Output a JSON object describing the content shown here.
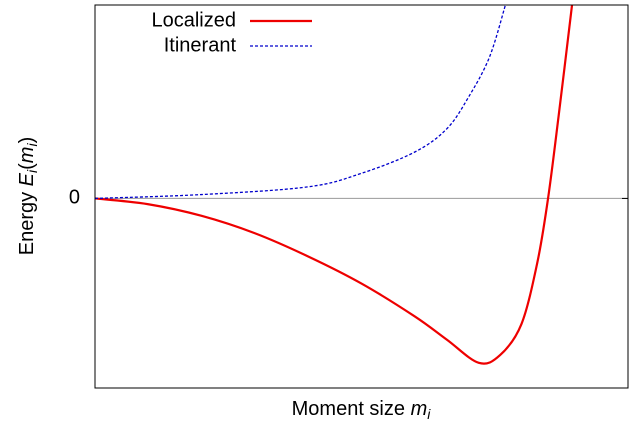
{
  "chart_data": {
    "type": "line",
    "xlabel": [
      "Moment size ",
      "m",
      "i"
    ],
    "ylabel": [
      "Energy ",
      "E",
      "i",
      "(",
      "m",
      "i",
      ")"
    ],
    "xlim": [
      0,
      1
    ],
    "xticks": [],
    "ylim": [
      -0.98,
      1.0
    ],
    "yticks": [
      0
    ],
    "grid": true,
    "legend": "upper left",
    "series": [
      {
        "name": "Localized",
        "color": "#ee0000",
        "dash": "solid",
        "x": [
          0,
          0.1,
          0.2,
          0.3,
          0.4,
          0.5,
          0.6,
          0.66,
          0.72,
          0.76,
          0.8,
          0.83,
          0.85,
          0.87,
          0.895
        ],
        "values": [
          0,
          -0.03,
          -0.09,
          -0.18,
          -0.3,
          -0.44,
          -0.61,
          -0.73,
          -0.85,
          -0.81,
          -0.65,
          -0.33,
          0,
          0.43,
          1.0
        ]
      },
      {
        "name": "Itinerant",
        "color": "#0000cc",
        "dash": "dashed",
        "x": [
          0,
          0.2,
          0.4,
          0.5,
          0.6,
          0.66,
          0.7,
          0.74,
          0.77
        ],
        "values": [
          0,
          0.02,
          0.06,
          0.13,
          0.24,
          0.36,
          0.52,
          0.73,
          1.0
        ]
      }
    ]
  }
}
